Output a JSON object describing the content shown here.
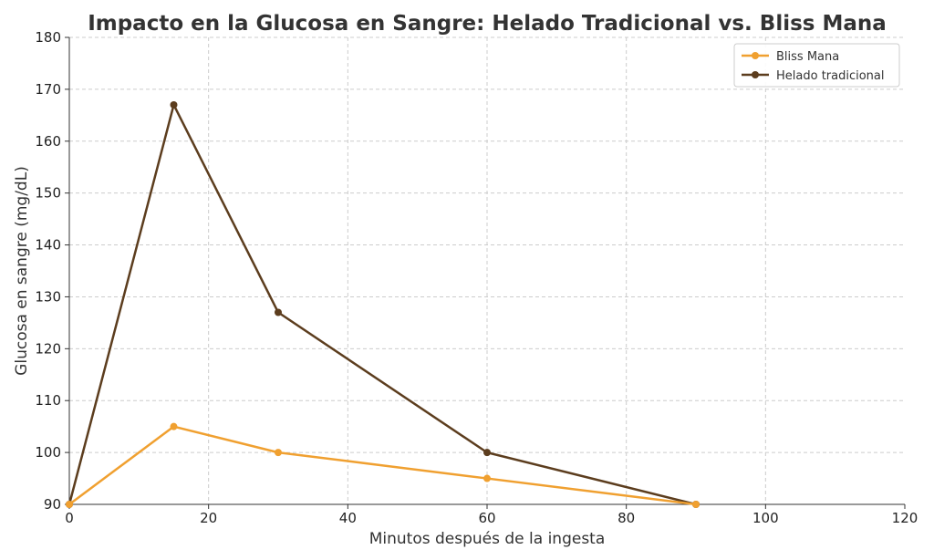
{
  "chart_data": {
    "type": "line",
    "title": "Impacto en la Glucosa en Sangre: Helado Tradicional vs. Bliss Mana",
    "xlabel": "Minutos después de la ingesta",
    "ylabel": "Glucosa en sangre (mg/dL)",
    "xlim": [
      0,
      120
    ],
    "ylim": [
      90,
      180
    ],
    "xticks": [
      0,
      20,
      40,
      60,
      80,
      100,
      120
    ],
    "yticks": [
      90,
      100,
      110,
      120,
      130,
      140,
      150,
      160,
      170,
      180
    ],
    "grid": true,
    "legend_position": "top-right",
    "series": [
      {
        "name": "Bliss Mana",
        "color": "#f0a030",
        "x": [
          0,
          15,
          30,
          60,
          90
        ],
        "y": [
          90,
          105,
          100,
          95,
          90
        ]
      },
      {
        "name": "Helado tradicional",
        "color": "#5c3d1e",
        "x": [
          0,
          15,
          30,
          60,
          90
        ],
        "y": [
          90,
          167,
          127,
          100,
          90
        ]
      }
    ]
  }
}
